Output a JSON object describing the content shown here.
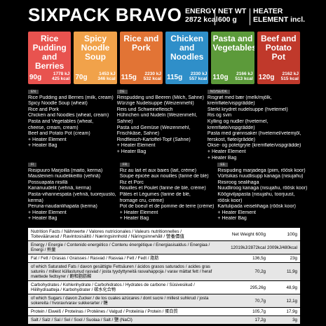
{
  "header": {
    "brand": "SIXPACK BRAVO",
    "energy_label": "ENERGY",
    "energy_value": "2872 kcal",
    "netwt_label": "NET WT",
    "netwt_value": "600 g",
    "heater_label": "HEATER",
    "heater_value": "ELEMENT incl."
  },
  "products": [
    {
      "title": "Rice Pudding and Berries",
      "grams": "90g",
      "kcal": "1778 kJ",
      "kcal2": "425 kcal",
      "color": "#e8534f"
    },
    {
      "title": "Spicy Noodle Soup",
      "grams": "70g",
      "kcal": "1453 kJ",
      "kcal2": "346 kcal",
      "color": "#f1a24a"
    },
    {
      "title": "Rice and Pork",
      "grams": "115g",
      "kcal": "2230 kJ",
      "kcal2": "532 kcal",
      "color": "#e27435"
    },
    {
      "title": "Chicken and Noodles",
      "grams": "115g",
      "kcal": "2330 kJ",
      "kcal2": "557 kcal",
      "color": "#2f8fc9"
    },
    {
      "title": "Pasta and Vegetables",
      "grams": "110g",
      "kcal": "2166 kJ",
      "kcal2": "513 kcal",
      "color": "#5c9a3a"
    },
    {
      "title": "Beef and Potato Pot",
      "grams": "120g",
      "kcal": "2162 kJ",
      "kcal2": "515 kcal",
      "color": "#c0392b"
    }
  ],
  "langs_top": [
    {
      "tag": "EN",
      "lines": [
        "Rice Pudding and Berries (milk, cream)",
        "Spicy Noodle Soup (wheat)",
        "Rice and Pork",
        "Chicken and Noodles (wheat, cream)",
        "Pasta and Vegetables (wheat,",
        "cheese, cream, cream)",
        "Beef and Potato Pot (cream)",
        "+ Heater Element",
        "+ Heater Bag"
      ]
    },
    {
      "tag": "DE",
      "lines": [
        "Reispudding und Beeren (Milch, Sahne)",
        "Würzige Nudelsuppe (Weizenmehl)",
        "Reis und Schweinefleisch",
        "Hühnchen und Nudeln (Weizenmehl,",
        "Sahne)",
        "Pasta und Gemüse (Weizenmehl,",
        "Frischkäse, Sahne)",
        "Rindfleisch-Kartoffel-Topf (Sahne)",
        "+ Heater Element",
        "+ Heater Bag"
      ]
    },
    {
      "tag": "NO/SE/DK",
      "lines": [
        "Risgrøt med bær (melk/mjölk,",
        "kremfløte/vispgrädde)",
        "Sterkt krydret nudelsuppe (hvetemel)",
        "Ris og svin",
        "Kylling og nudler (hvetemel,",
        "kremfløte/vispgrädde)",
        "Pasta med grønnsaker (hvetemel/vetemjöl,",
        "ferskost, fløte/grädde)",
        "Okse- og potetgryte (kremfløte/vispgrädde)",
        "+ Heater Element",
        "+ Heater Bag"
      ]
    }
  ],
  "langs_bottom": [
    {
      "tag": "FI",
      "lines": [
        "Riisipuuro Marjoilla (maito, kerma)",
        "Mausteinen nuudelikeitto (vehnä)",
        "Possuapata riisillä",
        "Kananuudelit (vehnä, kerma)",
        "Pasta-vihannespata (vehnä, tuorejuusto,",
        "kerma)",
        "Peruna-naudanlihapata (kerma)",
        "+ Heater Element",
        "+ Heater Bag"
      ]
    },
    {
      "tag": "FR",
      "lines": [
        "Riz au lait et aux baies (lait, crème)",
        "Soupe épicée aux nouilles (farine de blé)",
        "Riz et Porc",
        "Nouilles et Poulet (farine de blé, crème)",
        "Pâtes et Légumes (farine de blé,",
        "fromage cru, crème)",
        "Pot de boeuf et de pomme de terre (crème)",
        "+ Heater Element",
        "+ Heater Bag"
      ]
    },
    {
      "tag": "EE",
      "lines": [
        "Riisipuding marjadega (piim, rõõsk koor)",
        "Vürtsikas nuudlisupp kanaga (nisujahu)",
        "Riisiroog sealihaga",
        "Nuudliroog kanaga (nisujahu, rõõsk koor)",
        "Köögiviljapasta (nisujahu, toorjuust,",
        "rõõsk koor)",
        "Kartulipada veiselihaga (rõõsk koor)",
        "+ Heater Element",
        "+ Heater Bag"
      ]
    }
  ],
  "nutrition": {
    "head_left1": "Nutrition Facts / Nährwerte / Valores nutricionales / Valeurs nutritionnelles /",
    "head_left2": "Toitevääruesd / Ravintosisältö / Næringsinnhold / Näringsinnehåll / 營養價值",
    "head_v1": "Net Weight 600g",
    "head_v2": "100g",
    "rows": [
      {
        "label": "Energy / Energie / Contenido energético / Contenu énergétique / Energiasisaldus / Energiaa / Energi / 熱量",
        "v1": "12019kJ/2872kcal",
        "v2": "2009kJ/480kcal"
      },
      {
        "label": "Fat / Fett / Grasas / Graisses / Rasvad / Rasvaa / Fett / Fedt / 脂肪",
        "v1": "136,5g",
        "v2": "23g"
      },
      {
        "label": "of which Saturated Fats / davon gesättigte Fettsäuren / ácidos grasos saturados / acides gras saturés / millest küllastunud rasvad / josta tyydyttyneitä rasvahappoja / varav mättat fett / heraf mættede fedtsyrer / 飽和脂肪酸",
        "v1": "70,2g",
        "v2": "11,9g"
      },
      {
        "label": "Carbohydrates / Kohlenhydrate / Carbohidratos / Hydrates de carbone / Süsivesikud / Hiilihydraatteja / Karbohydrater / 碳水化合物",
        "v1": "295,26g",
        "v2": "48,9g"
      },
      {
        "label": "of which Sugars / davon Zucker / de los cuales azúcares / dont sucre / millest suhkrud / josta sokereita / hvorav/varav sukkerarter / 糖",
        "v1": "70,7g",
        "v2": "12,1g"
      },
      {
        "label": "Protein / Eiweiß / Proteínas / Protéines / Valgud / Proteiinia / Protein / 蛋白質",
        "v1": "105,7g",
        "v2": "17,9g"
      },
      {
        "label": "Salt / Salz / Sal / Sel / Sool / Suolaa / Salt / 鹽 (NaCl)",
        "v1": "17,2g",
        "v2": "3g"
      }
    ]
  }
}
